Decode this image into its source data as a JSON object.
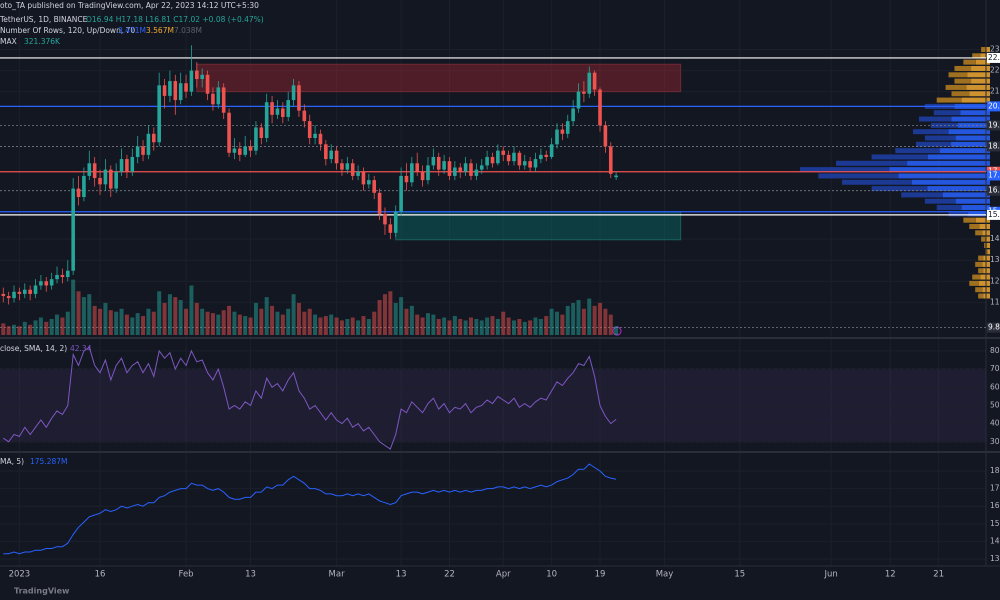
{
  "header": {
    "published": "oto_TA published on TradingView.com, Apr 22, 2023 14:12 UTC+5:30",
    "symbol": "TetherUS, 1D, BINANCE",
    "ohlc_text": "O16.94 H17.18 L16.81 C17.02 +0.08 (+0.47%)",
    "profile_text": "Number Of Rows, 120, Up/Down, 70",
    "profile_up": "3.471M",
    "profile_down": "3.567M",
    "profile_total": "7.038M",
    "max_text": "MAX",
    "max_value": "321.376K",
    "rsi_text": "close, SMA, 14, 2)",
    "rsi_value": "42.34",
    "ind_text": "MA, 5)",
    "ind_value": "175.287M",
    "logo": "TradingView"
  },
  "chart_data": {
    "type": "candlestick",
    "up_color": "#26a69a",
    "down_color": "#ef5350",
    "ylim": [
      9.45,
      25.35
    ],
    "yticks": [
      23,
      22,
      21,
      14,
      13,
      12,
      11
    ],
    "ohlc": [
      [
        11.4,
        11.7,
        11.0,
        11.3
      ],
      [
        11.3,
        11.5,
        10.9,
        11.2
      ],
      [
        11.2,
        11.8,
        11.0,
        11.5
      ],
      [
        11.5,
        11.7,
        11.1,
        11.4
      ],
      [
        11.4,
        11.9,
        11.2,
        11.6
      ],
      [
        11.6,
        11.8,
        11.1,
        11.4
      ],
      [
        11.4,
        12.1,
        11.2,
        11.8
      ],
      [
        11.8,
        12.3,
        11.6,
        12.0
      ],
      [
        12.0,
        12.2,
        11.5,
        11.8
      ],
      [
        11.8,
        12.4,
        11.6,
        12.1
      ],
      [
        12.1,
        12.7,
        11.9,
        12.3
      ],
      [
        12.3,
        12.6,
        11.9,
        12.2
      ],
      [
        12.2,
        13.0,
        12.0,
        12.5
      ],
      [
        12.5,
        16.9,
        12.3,
        16.4
      ],
      [
        16.4,
        17.0,
        15.6,
        16.0
      ],
      [
        16.0,
        17.4,
        15.8,
        17.0
      ],
      [
        17.0,
        18.2,
        16.8,
        17.6
      ],
      [
        17.6,
        17.9,
        16.5,
        16.9
      ],
      [
        16.9,
        17.3,
        16.1,
        16.6
      ],
      [
        16.6,
        17.8,
        16.3,
        17.3
      ],
      [
        17.3,
        17.5,
        16.0,
        16.4
      ],
      [
        16.4,
        17.6,
        16.2,
        17.2
      ],
      [
        17.2,
        18.3,
        17.0,
        17.8
      ],
      [
        17.8,
        18.0,
        16.9,
        17.2
      ],
      [
        17.2,
        18.3,
        17.0,
        17.9
      ],
      [
        17.9,
        18.9,
        17.6,
        18.4
      ],
      [
        18.4,
        18.7,
        17.7,
        18.0
      ],
      [
        18.0,
        19.4,
        17.8,
        19.0
      ],
      [
        19.0,
        19.3,
        18.2,
        18.6
      ],
      [
        18.6,
        21.9,
        18.4,
        21.3
      ],
      [
        21.3,
        21.6,
        20.2,
        20.8
      ],
      [
        20.8,
        22.0,
        20.5,
        21.5
      ],
      [
        21.5,
        21.8,
        19.9,
        20.6
      ],
      [
        20.6,
        21.9,
        20.4,
        21.4
      ],
      [
        21.4,
        21.8,
        20.7,
        21.0
      ],
      [
        21.0,
        23.2,
        20.8,
        22.0
      ],
      [
        22.0,
        22.4,
        21.2,
        21.6
      ],
      [
        21.6,
        22.1,
        21.2,
        21.8
      ],
      [
        21.8,
        22.0,
        20.6,
        20.9
      ],
      [
        20.9,
        21.2,
        20.1,
        20.4
      ],
      [
        20.4,
        21.5,
        20.2,
        21.2
      ],
      [
        21.2,
        21.4,
        19.7,
        20.0
      ],
      [
        20.0,
        20.2,
        17.9,
        18.1
      ],
      [
        18.1,
        18.8,
        17.8,
        18.3
      ],
      [
        18.3,
        18.6,
        17.7,
        18.0
      ],
      [
        18.0,
        18.9,
        17.9,
        18.4
      ],
      [
        18.4,
        18.7,
        17.9,
        18.2
      ],
      [
        18.2,
        19.6,
        18.0,
        19.3
      ],
      [
        19.3,
        19.5,
        18.5,
        18.8
      ],
      [
        18.8,
        20.9,
        18.6,
        20.5
      ],
      [
        20.5,
        20.8,
        19.5,
        19.9
      ],
      [
        19.9,
        20.6,
        19.7,
        20.2
      ],
      [
        20.2,
        20.5,
        19.5,
        19.8
      ],
      [
        19.8,
        21.0,
        19.6,
        20.6
      ],
      [
        20.6,
        21.6,
        20.3,
        21.3
      ],
      [
        21.3,
        21.5,
        19.8,
        20.1
      ],
      [
        20.1,
        20.4,
        19.3,
        19.6
      ],
      [
        19.6,
        19.9,
        18.5,
        18.8
      ],
      [
        18.8,
        19.4,
        18.5,
        19.0
      ],
      [
        19.0,
        19.2,
        18.2,
        18.5
      ],
      [
        18.5,
        18.7,
        17.5,
        17.8
      ],
      [
        17.8,
        18.5,
        17.6,
        18.2
      ],
      [
        18.2,
        18.4,
        17.3,
        17.6
      ],
      [
        17.6,
        17.8,
        17.0,
        17.3
      ],
      [
        17.3,
        17.9,
        17.1,
        17.6
      ],
      [
        17.6,
        17.8,
        16.8,
        17.0
      ],
      [
        17.0,
        17.5,
        16.8,
        17.2
      ],
      [
        17.2,
        17.4,
        16.3,
        16.6
      ],
      [
        16.6,
        17.1,
        16.4,
        16.8
      ],
      [
        16.8,
        17.0,
        15.9,
        16.2
      ],
      [
        16.2,
        16.4,
        14.9,
        15.2
      ],
      [
        15.2,
        15.5,
        14.2,
        14.7
      ],
      [
        14.7,
        15.0,
        14.0,
        14.3
      ],
      [
        14.3,
        15.6,
        14.1,
        15.3
      ],
      [
        15.3,
        17.4,
        15.1,
        17.0
      ],
      [
        17.0,
        17.6,
        16.3,
        16.7
      ],
      [
        16.7,
        17.9,
        16.5,
        17.6
      ],
      [
        17.6,
        18.1,
        17.0,
        17.2
      ],
      [
        17.2,
        17.5,
        16.5,
        16.8
      ],
      [
        16.8,
        17.9,
        16.6,
        17.5
      ],
      [
        17.5,
        18.3,
        17.3,
        17.9
      ],
      [
        17.9,
        18.1,
        17.0,
        17.3
      ],
      [
        17.3,
        18.0,
        17.1,
        17.7
      ],
      [
        17.7,
        17.9,
        16.8,
        17.0
      ],
      [
        17.0,
        17.7,
        16.8,
        17.4
      ],
      [
        17.4,
        17.6,
        16.9,
        17.2
      ],
      [
        17.2,
        17.9,
        17.0,
        17.6
      ],
      [
        17.6,
        17.8,
        16.8,
        17.0
      ],
      [
        17.0,
        17.6,
        16.8,
        17.3
      ],
      [
        17.3,
        17.8,
        17.1,
        17.5
      ],
      [
        17.5,
        18.2,
        17.3,
        17.9
      ],
      [
        17.9,
        18.1,
        17.4,
        17.6
      ],
      [
        17.6,
        18.5,
        17.5,
        18.2
      ],
      [
        18.2,
        18.4,
        17.7,
        18.0
      ],
      [
        18.0,
        18.2,
        17.5,
        17.7
      ],
      [
        17.7,
        18.4,
        17.5,
        18.1
      ],
      [
        18.1,
        18.2,
        17.3,
        17.5
      ],
      [
        17.5,
        18.0,
        17.3,
        17.7
      ],
      [
        17.7,
        17.9,
        17.2,
        17.4
      ],
      [
        17.4,
        18.1,
        17.2,
        17.8
      ],
      [
        17.8,
        18.3,
        17.6,
        18.0
      ],
      [
        18.0,
        18.2,
        17.7,
        17.9
      ],
      [
        17.9,
        18.8,
        17.8,
        18.5
      ],
      [
        18.5,
        19.5,
        18.3,
        19.2
      ],
      [
        19.2,
        19.5,
        18.7,
        19.0
      ],
      [
        19.0,
        19.9,
        18.8,
        19.6
      ],
      [
        19.6,
        20.6,
        19.4,
        20.2
      ],
      [
        20.2,
        21.4,
        20.0,
        21.0
      ],
      [
        21.0,
        21.5,
        20.5,
        20.9
      ],
      [
        20.9,
        22.2,
        20.7,
        21.9
      ],
      [
        21.9,
        22.0,
        20.8,
        21.1
      ],
      [
        21.1,
        21.2,
        19.1,
        19.4
      ],
      [
        19.4,
        19.6,
        18.1,
        18.4
      ],
      [
        18.4,
        18.6,
        16.9,
        17.1
      ],
      [
        16.94,
        17.18,
        16.81,
        17.02
      ]
    ],
    "xticks": [
      {
        "value": 3,
        "label": "2023"
      },
      {
        "value": 18,
        "label": "16"
      },
      {
        "value": 34,
        "label": "Feb"
      },
      {
        "value": 46,
        "label": "13"
      },
      {
        "value": 62,
        "label": "Mar"
      },
      {
        "value": 74,
        "label": "13"
      },
      {
        "value": 83,
        "label": "22"
      },
      {
        "value": 93,
        "label": "Apr"
      },
      {
        "value": 102,
        "label": "10"
      },
      {
        "value": 111,
        "label": "19"
      },
      {
        "value": 123,
        "label": "May"
      },
      {
        "value": 137,
        "label": "15"
      },
      {
        "value": 154,
        "label": "Jun"
      },
      {
        "value": 165,
        "label": "12"
      },
      {
        "value": 174,
        "label": "21"
      }
    ],
    "levels": [
      {
        "value": 22.6,
        "color": "#ffffff",
        "dash": false
      },
      {
        "value": 20.3,
        "color": "#2962ff",
        "dash": false
      },
      {
        "value": 19.4,
        "color": "#787b86",
        "dash": true
      },
      {
        "value": 18.4,
        "color": "#787b86",
        "dash": true
      },
      {
        "value": 17.2,
        "color": "#ef5350",
        "dash": false
      },
      {
        "value": 16.3,
        "color": "#787b86",
        "dash": true
      },
      {
        "value": 15.3,
        "color": "#2962ff",
        "dash": false
      },
      {
        "value": 15.15,
        "color": "#ffffff",
        "dash": false
      },
      {
        "value": 9.8,
        "color": "#787b86",
        "dash": true
      }
    ],
    "zones": [
      {
        "top": 22.3,
        "bottom": 21.0,
        "start": 36,
        "end": 126,
        "color": "rgba(178,40,51,0.38)",
        "border": "#6d2a33"
      },
      {
        "top": 15.3,
        "bottom": 13.97,
        "start": 73,
        "end": 126,
        "color": "rgba(0,150,136,0.3)",
        "border": "#1b5e5b"
      }
    ],
    "volume": {
      "ylim": [
        0,
        230
      ],
      "up_color": "rgba(38,166,154,0.5)",
      "down_color": "rgba(239,83,80,0.5)",
      "values": [
        8,
        6,
        7,
        6,
        9,
        7,
        10,
        12,
        9,
        11,
        14,
        12,
        16,
        38,
        30,
        26,
        28,
        20,
        18,
        22,
        17,
        16,
        18,
        14,
        12,
        15,
        13,
        18,
        16,
        30,
        22,
        28,
        26,
        24,
        18,
        34,
        22,
        18,
        16,
        15,
        14,
        17,
        20,
        16,
        14,
        13,
        12,
        22,
        18,
        26,
        20,
        16,
        14,
        18,
        28,
        22,
        16,
        18,
        14,
        12,
        13,
        14,
        12,
        10,
        11,
        12,
        10,
        13,
        11,
        16,
        24,
        28,
        30,
        22,
        26,
        18,
        20,
        14,
        12,
        15,
        14,
        11,
        12,
        10,
        13,
        11,
        10,
        12,
        11,
        10,
        12,
        13,
        11,
        16,
        12,
        10,
        11,
        9,
        10,
        12,
        11,
        13,
        18,
        16,
        14,
        20,
        22,
        24,
        18,
        25,
        20,
        22,
        18,
        14,
        6
      ]
    },
    "profile": {
      "xlim": [
        0,
        1672
      ],
      "value_area": [
        15.0,
        20.3
      ],
      "up_color": "#f0a830",
      "down_color": "#b8801e",
      "va_up_color": "#2962ff",
      "va_down_color": "#1e3fa8",
      "prices": [
        23.0,
        22.7,
        22.4,
        22.1,
        21.8,
        21.5,
        21.2,
        20.9,
        20.6,
        20.3,
        20.0,
        19.7,
        19.4,
        19.1,
        18.8,
        18.5,
        18.2,
        17.9,
        17.6,
        17.3,
        17.0,
        16.7,
        16.4,
        16.1,
        15.8,
        15.5,
        15.2,
        14.9,
        14.6,
        14.3,
        14.0,
        13.7,
        13.4,
        13.1,
        12.8,
        12.5,
        12.2,
        11.9,
        11.6,
        11.3
      ],
      "up": [
        8,
        16,
        24,
        32,
        38,
        32,
        40,
        35,
        48,
        60,
        50,
        65,
        54,
        70,
        58,
        66,
        85,
        105,
        140,
        170,
        155,
        132,
        106,
        80,
        58,
        48,
        37,
        24,
        18,
        13,
        8,
        5,
        4,
        11,
        13,
        11,
        16,
        19,
        13,
        11
      ],
      "down": [
        7,
        14,
        21,
        28,
        32,
        28,
        35,
        30,
        42,
        50,
        45,
        55,
        46,
        60,
        52,
        59,
        75,
        95,
        120,
        151,
        135,
        118,
        94,
        70,
        52,
        42,
        33,
        21,
        17,
        12,
        7,
        5,
        4,
        9,
        12,
        9,
        14,
        16,
        12,
        9
      ]
    },
    "rsi": {
      "ylim": [
        25.5,
        86
      ],
      "yticks": [
        80,
        70,
        60,
        50,
        40,
        30
      ],
      "band": [
        30,
        70
      ],
      "color": "#7e57c2",
      "values": [
        32,
        30,
        34,
        33,
        38,
        34,
        38,
        42,
        38,
        43,
        47,
        45,
        50,
        78,
        72,
        80,
        82,
        72,
        68,
        75,
        64,
        72,
        76,
        68,
        72,
        74,
        68,
        73,
        66,
        80,
        76,
        79,
        70,
        76,
        72,
        80,
        74,
        75,
        68,
        64,
        70,
        60,
        48,
        50,
        48,
        52,
        50,
        58,
        54,
        65,
        60,
        62,
        58,
        64,
        68,
        58,
        54,
        48,
        50,
        46,
        42,
        46,
        42,
        40,
        43,
        38,
        40,
        36,
        38,
        34,
        30,
        28,
        26,
        34,
        48,
        46,
        52,
        49,
        46,
        51,
        54,
        48,
        51,
        46,
        49,
        48,
        51,
        46,
        49,
        50,
        53,
        51,
        55,
        53,
        51,
        54,
        49,
        51,
        49,
        52,
        54,
        53,
        58,
        63,
        61,
        65,
        68,
        73,
        72,
        77,
        66,
        50,
        44,
        40,
        42.34
      ]
    },
    "indicator": {
      "ylim": [
        126.6,
        189.1
      ],
      "yticks": [
        180,
        170,
        160,
        150,
        140,
        130
      ],
      "color": "#2962ff",
      "values": [
        133,
        133,
        134,
        133,
        134,
        134,
        135,
        135,
        136,
        136,
        137,
        137,
        139,
        144,
        148,
        151,
        154,
        155,
        156,
        158,
        157,
        158,
        160,
        159,
        160,
        161,
        160,
        162,
        162,
        165,
        166,
        168,
        169,
        170,
        170,
        173,
        172,
        172,
        170,
        169,
        170,
        168,
        165,
        164,
        164,
        165,
        165,
        168,
        168,
        171,
        170,
        172,
        172,
        175,
        177,
        175,
        173,
        170,
        170,
        169,
        167,
        167,
        166,
        166,
        167,
        166,
        167,
        166,
        167,
        165,
        163,
        162,
        161,
        162,
        166,
        167,
        168,
        168,
        167,
        168,
        169,
        168,
        169,
        168,
        169,
        168,
        169,
        168,
        169,
        169,
        170,
        170,
        171,
        171,
        170,
        171,
        170,
        171,
        170,
        171,
        172,
        171,
        172,
        174,
        175,
        176,
        178,
        181,
        181,
        184,
        182,
        180,
        177,
        176,
        175.287
      ]
    }
  }
}
